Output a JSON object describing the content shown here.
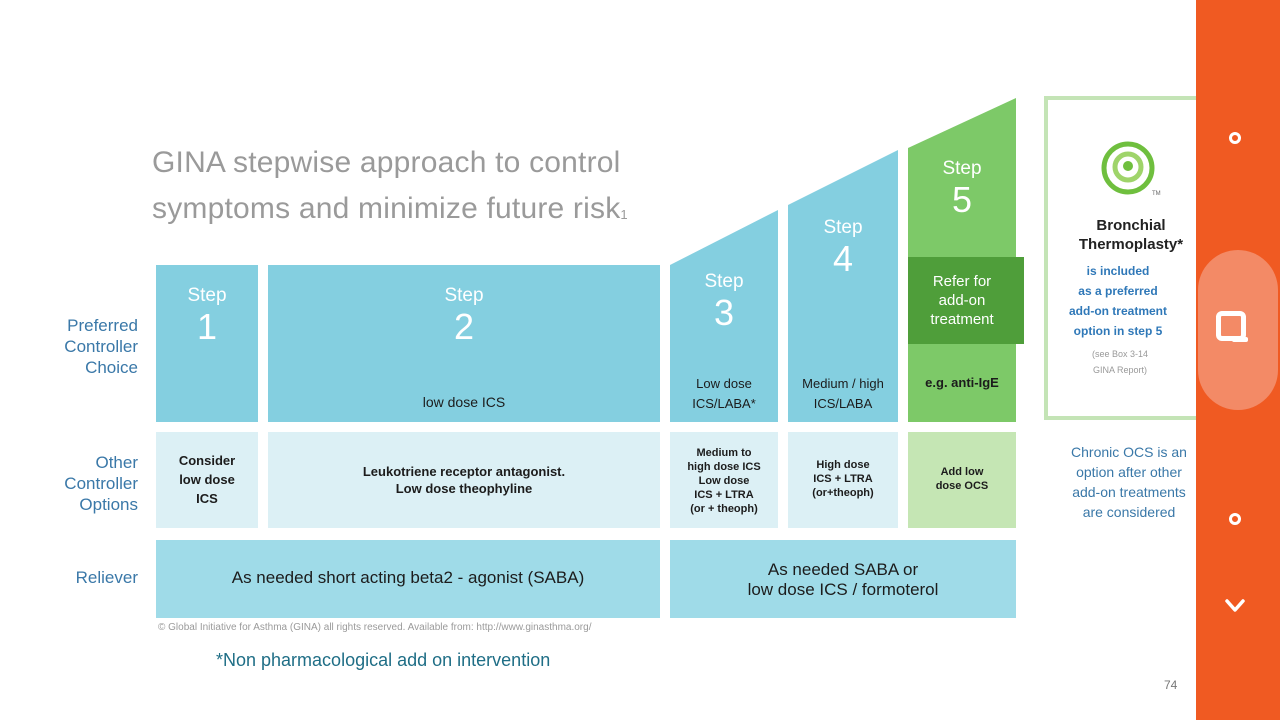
{
  "slide": {
    "title_line1": "GINA stepwise approach to control",
    "title_line2": "symptoms and minimize future risk",
    "title_sup": "1",
    "row_labels": {
      "preferred": [
        "Preferred",
        "Controller",
        "Choice"
      ],
      "other": [
        "Other",
        "Controller",
        "Options"
      ],
      "reliever": "Reliever"
    },
    "steps": [
      {
        "label": "Step",
        "num": "1",
        "preferred": "",
        "other": [
          "Consider",
          "low dose",
          "ICS"
        ]
      },
      {
        "label": "Step",
        "num": "2",
        "preferred": "low dose ICS",
        "other": [
          "Leukotriene receptor antagonist.",
          "Low dose theophyline"
        ]
      },
      {
        "label": "Step",
        "num": "3",
        "preferred": [
          "Low dose",
          "ICS/LABA*"
        ],
        "other": [
          "Medium to",
          "high dose ICS",
          "Low dose",
          "ICS + LTRA",
          "(or + theoph)"
        ]
      },
      {
        "label": "Step",
        "num": "4",
        "preferred": [
          "Medium / high",
          "ICS/LABA"
        ],
        "other": [
          "High dose",
          "ICS + LTRA",
          "(or+theoph)"
        ]
      },
      {
        "label": "Step",
        "num": "5",
        "refer": [
          "Refer for",
          "add-on",
          "treatment"
        ],
        "preferred": "e.g. anti-IgE",
        "other": [
          "Add low",
          "dose OCS"
        ]
      }
    ],
    "reliever_left": "As needed short acting beta2 - agonist (SABA)",
    "reliever_right": [
      "As needed SABA or",
      "low dose ICS / formoterol"
    ],
    "bt": {
      "title": [
        "Bronchial",
        "Thermoplasty*"
      ],
      "tm": "TM",
      "body": [
        "is included",
        "as a preferred",
        "add-on treatment",
        "option in step 5"
      ],
      "see": [
        "(see Box 3-14",
        "GINA Report)"
      ]
    },
    "chronic": [
      "Chronic OCS is an",
      "option after other",
      "add-on treatments",
      "are considered"
    ],
    "copyright": "© Global Initiative for Asthma (GINA) all rights reserved. Available from: http://www.ginasthma.org/",
    "footnote": "*Non pharmacological add on intervention",
    "page_number": "74"
  },
  "sidebar": {
    "icons": [
      "circle-icon",
      "search-icon",
      "circle-icon",
      "chevron-down-icon"
    ]
  },
  "colors": {
    "step_blue": "#84cfe0",
    "light_blue": "#dcf0f5",
    "step_green": "#7dc968",
    "dark_green": "#4f9e3a",
    "sidebar_orange": "#f05a22"
  }
}
